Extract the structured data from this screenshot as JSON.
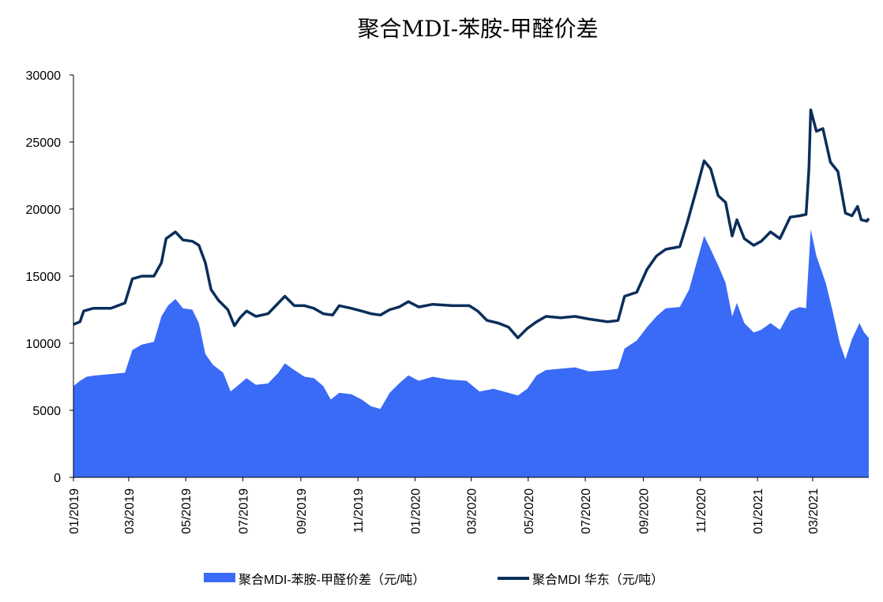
{
  "chart_data": {
    "type": "area",
    "title": "聚合MDI-苯胺-甲醛价差",
    "xlabel": "",
    "ylabel": "",
    "ylim": [
      0,
      30000
    ],
    "yticks": [
      0,
      5000,
      10000,
      15000,
      20000,
      25000,
      30000
    ],
    "ytick_labels": [
      "0",
      "5000",
      "10000",
      "15000",
      "20000",
      "25000",
      "30000"
    ],
    "xlim": [
      "2019-01-01",
      "2021-04-30"
    ],
    "xticks": [
      "2019-01-01",
      "2019-03-01",
      "2019-05-01",
      "2019-07-01",
      "2019-09-01",
      "2019-11-01",
      "2020-01-01",
      "2020-03-01",
      "2020-05-01",
      "2020-07-01",
      "2020-09-01",
      "2020-11-01",
      "2021-01-01",
      "2021-03-01"
    ],
    "xtick_labels": [
      "01/2019",
      "03/2019",
      "05/2019",
      "07/2019",
      "09/2019",
      "11/2019",
      "01/2020",
      "03/2020",
      "05/2020",
      "07/2020",
      "09/2020",
      "11/2020",
      "01/2021",
      "03/2021"
    ],
    "grid": false,
    "legend_position": "bottom",
    "series": [
      {
        "name": "聚合MDI-苯胺-甲醛价差（元/吨）",
        "kind": "area",
        "color": "#3A6BF7",
        "points": [
          [
            "2019-01-01",
            6800
          ],
          [
            "2019-01-08",
            7200
          ],
          [
            "2019-01-15",
            7500
          ],
          [
            "2019-01-25",
            7600
          ],
          [
            "2019-02-10",
            7700
          ],
          [
            "2019-02-25",
            7800
          ],
          [
            "2019-03-05",
            9500
          ],
          [
            "2019-03-15",
            9900
          ],
          [
            "2019-03-28",
            10100
          ],
          [
            "2019-04-05",
            12000
          ],
          [
            "2019-04-12",
            12800
          ],
          [
            "2019-04-20",
            13300
          ],
          [
            "2019-04-28",
            12600
          ],
          [
            "2019-05-08",
            12500
          ],
          [
            "2019-05-15",
            11500
          ],
          [
            "2019-05-22",
            9200
          ],
          [
            "2019-05-30",
            8400
          ],
          [
            "2019-06-10",
            7800
          ],
          [
            "2019-06-18",
            6400
          ],
          [
            "2019-06-25",
            6800
          ],
          [
            "2019-07-05",
            7400
          ],
          [
            "2019-07-15",
            6900
          ],
          [
            "2019-07-28",
            7000
          ],
          [
            "2019-08-08",
            7800
          ],
          [
            "2019-08-15",
            8500
          ],
          [
            "2019-08-25",
            8000
          ],
          [
            "2019-09-05",
            7500
          ],
          [
            "2019-09-15",
            7400
          ],
          [
            "2019-09-25",
            6800
          ],
          [
            "2019-10-03",
            5800
          ],
          [
            "2019-10-12",
            6300
          ],
          [
            "2019-10-25",
            6200
          ],
          [
            "2019-11-05",
            5800
          ],
          [
            "2019-11-15",
            5300
          ],
          [
            "2019-11-25",
            5100
          ],
          [
            "2019-12-05",
            6300
          ],
          [
            "2019-12-15",
            7000
          ],
          [
            "2019-12-25",
            7600
          ],
          [
            "2020-01-05",
            7200
          ],
          [
            "2020-01-20",
            7500
          ],
          [
            "2020-02-05",
            7300
          ],
          [
            "2020-02-25",
            7200
          ],
          [
            "2020-03-10",
            6400
          ],
          [
            "2020-03-25",
            6600
          ],
          [
            "2020-04-10",
            6300
          ],
          [
            "2020-04-20",
            6100
          ],
          [
            "2020-04-30",
            6600
          ],
          [
            "2020-05-10",
            7600
          ],
          [
            "2020-05-20",
            8000
          ],
          [
            "2020-06-05",
            8100
          ],
          [
            "2020-06-20",
            8200
          ],
          [
            "2020-07-05",
            7900
          ],
          [
            "2020-07-25",
            8000
          ],
          [
            "2020-08-05",
            8100
          ],
          [
            "2020-08-12",
            9600
          ],
          [
            "2020-08-25",
            10200
          ],
          [
            "2020-09-05",
            11200
          ],
          [
            "2020-09-15",
            12000
          ],
          [
            "2020-09-25",
            12600
          ],
          [
            "2020-10-10",
            12700
          ],
          [
            "2020-10-20",
            14000
          ],
          [
            "2020-10-28",
            16000
          ],
          [
            "2020-11-05",
            18000
          ],
          [
            "2020-11-12",
            17000
          ],
          [
            "2020-11-20",
            15800
          ],
          [
            "2020-11-28",
            14500
          ],
          [
            "2020-12-05",
            12000
          ],
          [
            "2020-12-10",
            13000
          ],
          [
            "2020-12-18",
            11500
          ],
          [
            "2020-12-28",
            10800
          ],
          [
            "2021-01-05",
            11000
          ],
          [
            "2021-01-15",
            11500
          ],
          [
            "2021-01-25",
            11000
          ],
          [
            "2021-02-05",
            12400
          ],
          [
            "2021-02-15",
            12700
          ],
          [
            "2021-02-22",
            12600
          ],
          [
            "2021-02-27",
            18500
          ],
          [
            "2021-03-05",
            16500
          ],
          [
            "2021-03-15",
            14500
          ],
          [
            "2021-03-22",
            12500
          ],
          [
            "2021-03-30",
            10000
          ],
          [
            "2021-04-05",
            8800
          ],
          [
            "2021-04-12",
            10300
          ],
          [
            "2021-04-20",
            11500
          ],
          [
            "2021-04-25",
            10800
          ],
          [
            "2021-04-30",
            10400
          ]
        ]
      },
      {
        "name": "聚合MDI 华东（元/吨）",
        "kind": "line",
        "color": "#0B2E5A",
        "points": [
          [
            "2019-01-01",
            11400
          ],
          [
            "2019-01-08",
            11600
          ],
          [
            "2019-01-12",
            12400
          ],
          [
            "2019-01-22",
            12600
          ],
          [
            "2019-02-10",
            12600
          ],
          [
            "2019-02-25",
            13000
          ],
          [
            "2019-03-05",
            14800
          ],
          [
            "2019-03-15",
            15000
          ],
          [
            "2019-03-28",
            15000
          ],
          [
            "2019-04-05",
            16000
          ],
          [
            "2019-04-10",
            17800
          ],
          [
            "2019-04-20",
            18300
          ],
          [
            "2019-04-28",
            17700
          ],
          [
            "2019-05-08",
            17600
          ],
          [
            "2019-05-15",
            17300
          ],
          [
            "2019-05-22",
            16000
          ],
          [
            "2019-05-28",
            14000
          ],
          [
            "2019-06-05",
            13200
          ],
          [
            "2019-06-15",
            12500
          ],
          [
            "2019-06-22",
            11300
          ],
          [
            "2019-06-28",
            11900
          ],
          [
            "2019-07-05",
            12400
          ],
          [
            "2019-07-15",
            12000
          ],
          [
            "2019-07-28",
            12200
          ],
          [
            "2019-08-08",
            13000
          ],
          [
            "2019-08-15",
            13500
          ],
          [
            "2019-08-25",
            12800
          ],
          [
            "2019-09-05",
            12800
          ],
          [
            "2019-09-15",
            12600
          ],
          [
            "2019-09-25",
            12200
          ],
          [
            "2019-10-05",
            12100
          ],
          [
            "2019-10-12",
            12800
          ],
          [
            "2019-10-25",
            12600
          ],
          [
            "2019-11-05",
            12400
          ],
          [
            "2019-11-15",
            12200
          ],
          [
            "2019-11-25",
            12100
          ],
          [
            "2019-12-05",
            12500
          ],
          [
            "2019-12-15",
            12700
          ],
          [
            "2019-12-25",
            13100
          ],
          [
            "2020-01-05",
            12700
          ],
          [
            "2020-01-20",
            12900
          ],
          [
            "2020-02-10",
            12800
          ],
          [
            "2020-02-28",
            12800
          ],
          [
            "2020-03-08",
            12400
          ],
          [
            "2020-03-18",
            11700
          ],
          [
            "2020-03-30",
            11500
          ],
          [
            "2020-04-10",
            11200
          ],
          [
            "2020-04-20",
            10400
          ],
          [
            "2020-04-30",
            11100
          ],
          [
            "2020-05-10",
            11600
          ],
          [
            "2020-05-20",
            12000
          ],
          [
            "2020-06-05",
            11900
          ],
          [
            "2020-06-20",
            12000
          ],
          [
            "2020-07-05",
            11800
          ],
          [
            "2020-07-25",
            11600
          ],
          [
            "2020-08-05",
            11700
          ],
          [
            "2020-08-12",
            13500
          ],
          [
            "2020-08-25",
            13800
          ],
          [
            "2020-09-05",
            15500
          ],
          [
            "2020-09-15",
            16500
          ],
          [
            "2020-09-25",
            17000
          ],
          [
            "2020-10-10",
            17200
          ],
          [
            "2020-10-18",
            19000
          ],
          [
            "2020-10-28",
            21500
          ],
          [
            "2020-11-05",
            23600
          ],
          [
            "2020-11-12",
            23000
          ],
          [
            "2020-11-20",
            21000
          ],
          [
            "2020-11-28",
            20500
          ],
          [
            "2020-12-05",
            18000
          ],
          [
            "2020-12-10",
            19200
          ],
          [
            "2020-12-18",
            17800
          ],
          [
            "2020-12-28",
            17300
          ],
          [
            "2021-01-05",
            17600
          ],
          [
            "2021-01-15",
            18300
          ],
          [
            "2021-01-25",
            17800
          ],
          [
            "2021-02-05",
            19400
          ],
          [
            "2021-02-15",
            19500
          ],
          [
            "2021-02-22",
            19600
          ],
          [
            "2021-02-25",
            23000
          ],
          [
            "2021-02-27",
            27400
          ],
          [
            "2021-03-05",
            25800
          ],
          [
            "2021-03-12",
            26000
          ],
          [
            "2021-03-20",
            23500
          ],
          [
            "2021-03-28",
            22800
          ],
          [
            "2021-04-05",
            19700
          ],
          [
            "2021-04-12",
            19500
          ],
          [
            "2021-04-18",
            20200
          ],
          [
            "2021-04-22",
            19200
          ],
          [
            "2021-04-28",
            19100
          ],
          [
            "2021-04-30",
            19300
          ]
        ]
      }
    ]
  }
}
